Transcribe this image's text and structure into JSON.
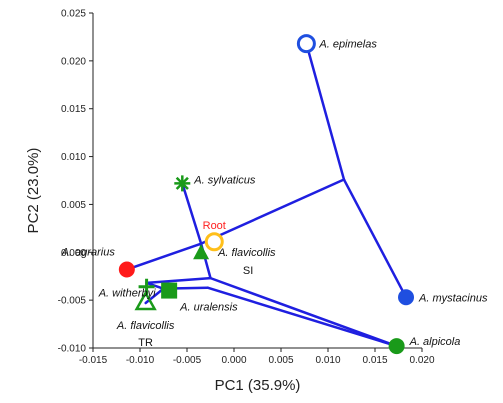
{
  "chart_data": {
    "type": "scatter",
    "title": "",
    "xlabel": "PC1 (35.9%)",
    "ylabel": "PC2 (23.0%)",
    "xlim": [
      -0.015,
      0.02
    ],
    "ylim": [
      -0.01,
      0.025
    ],
    "xticks": [
      -0.015,
      -0.01,
      -0.005,
      0.0,
      0.005,
      0.01,
      0.015,
      0.02
    ],
    "xtick_labels": [
      "-0.015",
      "-0.010",
      "-0.005",
      "0.000",
      "0.005",
      "0.010",
      "0.015",
      "0.020"
    ],
    "yticks": [
      -0.01,
      -0.005,
      0.0,
      0.005,
      0.01,
      0.015,
      0.02,
      0.025
    ],
    "ytick_labels": [
      "-0.010",
      "-0.005",
      "0.000",
      "0.005",
      "0.010",
      "0.015",
      "0.020",
      "0.025"
    ],
    "grid": false,
    "colors": {
      "tree": "#1f1fe0",
      "green": "#1a9a1a",
      "red": "#ff1a1a",
      "blue": "#1f4fe0",
      "root": "#ffbf1a"
    },
    "points": [
      {
        "id": "epimelas",
        "label": "A. epimelas",
        "sub": "",
        "x": 0.0077,
        "y": 0.0218,
        "marker": "open-circle",
        "color": "#1f4fe0"
      },
      {
        "id": "sylvaticus",
        "label": "A. sylvaticus",
        "sub": "",
        "x": -0.0055,
        "y": 0.0072,
        "marker": "asterisk",
        "color": "#1a9a1a"
      },
      {
        "id": "root",
        "label": "Root",
        "sub": "",
        "x": -0.0021,
        "y": 0.0011,
        "marker": "open-circle",
        "color": "#ffbf1a"
      },
      {
        "id": "agrarius",
        "label": "A. agrarius",
        "sub": "",
        "x": -0.0114,
        "y": -0.0018,
        "marker": "filled-circle",
        "color": "#ff1a1a"
      },
      {
        "id": "flavicollis_si",
        "label": "A. flavicollis",
        "sub": "SI",
        "x": -0.0035,
        "y": -0.0001,
        "marker": "filled-triangle",
        "color": "#1a9a1a"
      },
      {
        "id": "witherbyi",
        "label": "A. witherbyi",
        "sub": "",
        "x": -0.0093,
        "y": -0.0036,
        "marker": "plus",
        "color": "#1a9a1a"
      },
      {
        "id": "uralensis",
        "label": "A. uralensis",
        "sub": "",
        "x": -0.0069,
        "y": -0.004,
        "marker": "filled-square",
        "color": "#1a9a1a"
      },
      {
        "id": "flavicollis_tr",
        "label": "A. flavicollis",
        "sub": "TR",
        "x": -0.0094,
        "y": -0.0053,
        "marker": "open-triangle",
        "color": "#1a9a1a"
      },
      {
        "id": "mystacinus",
        "label": "A. mystacinus",
        "sub": "",
        "x": 0.0183,
        "y": -0.0047,
        "marker": "filled-circle",
        "color": "#1f4fe0"
      },
      {
        "id": "alpicola",
        "label": "A. alpicola",
        "sub": "",
        "x": 0.0173,
        "y": -0.0098,
        "marker": "filled-circle",
        "color": "#1a9a1a"
      }
    ],
    "tree_edges": [
      [
        [
          0.0077,
          0.0218
        ],
        [
          0.0117,
          0.0076
        ]
      ],
      [
        [
          0.0117,
          0.0076
        ],
        [
          0.0183,
          -0.0047
        ]
      ],
      [
        [
          0.0117,
          0.0076
        ],
        [
          -0.0035,
          0.0009
        ]
      ],
      [
        [
          -0.0035,
          0.0009
        ],
        [
          -0.0055,
          0.0072
        ]
      ],
      [
        [
          -0.0035,
          0.0009
        ],
        [
          -0.0114,
          -0.0018
        ]
      ],
      [
        [
          -0.0035,
          0.0009
        ],
        [
          -0.0035,
          -0.0001
        ]
      ],
      [
        [
          -0.0035,
          0.0009
        ],
        [
          -0.0025,
          -0.0027
        ]
      ],
      [
        [
          -0.0025,
          -0.0027
        ],
        [
          0.0173,
          -0.0098
        ]
      ],
      [
        [
          -0.0025,
          -0.0027
        ],
        [
          -0.0093,
          -0.0032
        ]
      ],
      [
        [
          -0.0093,
          -0.0032
        ],
        [
          -0.0093,
          -0.0036
        ]
      ],
      [
        [
          -0.0093,
          -0.0032
        ],
        [
          -0.0075,
          -0.0038
        ]
      ],
      [
        [
          -0.0075,
          -0.0038
        ],
        [
          -0.0069,
          -0.004
        ]
      ],
      [
        [
          -0.0075,
          -0.0038
        ],
        [
          -0.0094,
          -0.0053
        ]
      ],
      [
        [
          -0.0075,
          -0.0038
        ],
        [
          -0.0028,
          -0.0037
        ]
      ],
      [
        [
          -0.0028,
          -0.0037
        ],
        [
          0.0173,
          -0.0098
        ]
      ]
    ]
  }
}
